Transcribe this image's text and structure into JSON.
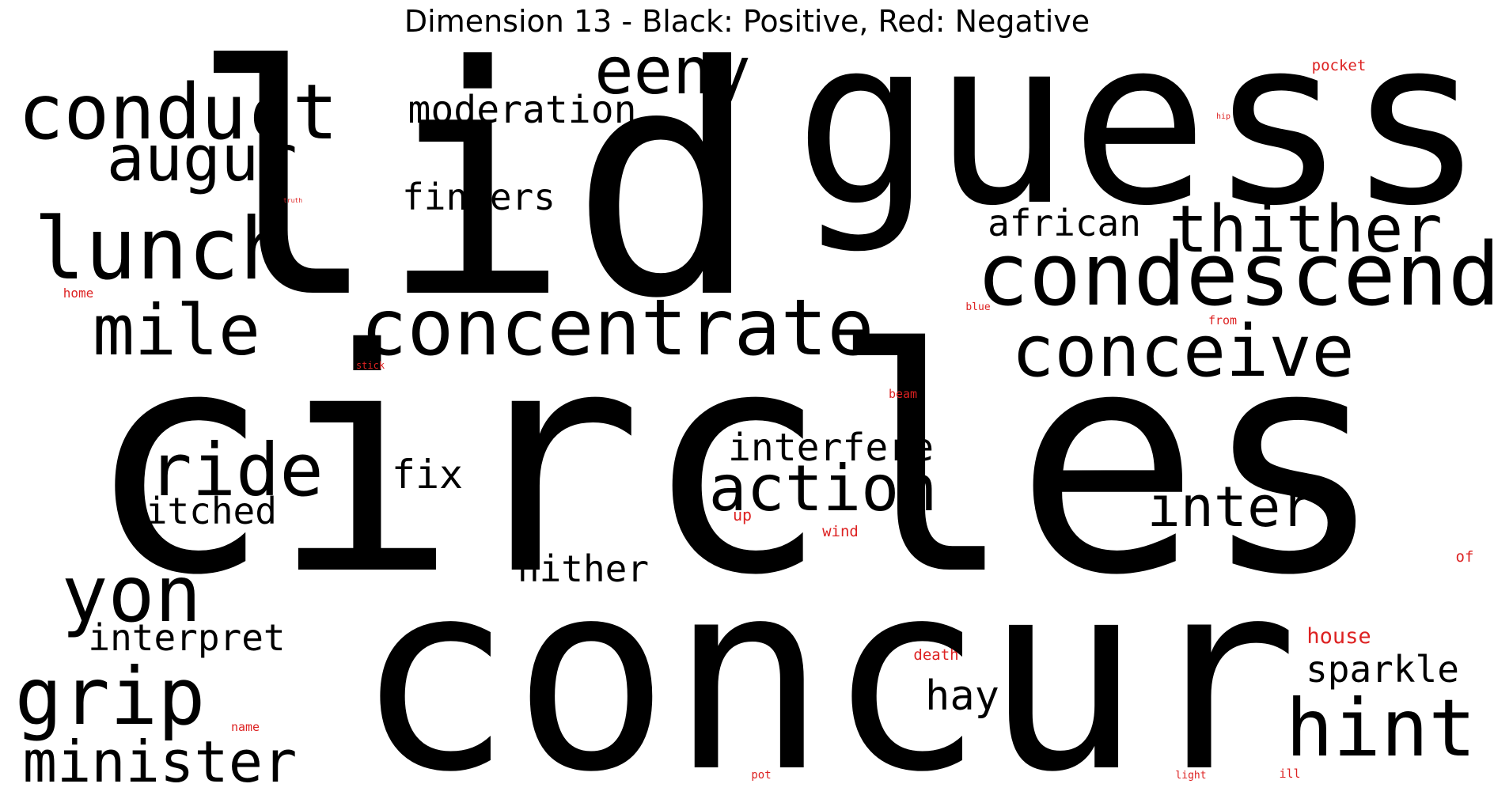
{
  "title": "Dimension 13 - Black: Positive, Red: Negative",
  "colors": {
    "positive": "#000000",
    "negative": "#dd2222"
  },
  "words": [
    {
      "text": "lid",
      "polarity": "positive"
    },
    {
      "text": "guess",
      "polarity": "positive"
    },
    {
      "text": "eeny",
      "polarity": "positive"
    },
    {
      "text": "conduct",
      "polarity": "positive"
    },
    {
      "text": "moderation",
      "polarity": "positive"
    },
    {
      "text": "augur",
      "polarity": "positive"
    },
    {
      "text": "fingers",
      "polarity": "positive"
    },
    {
      "text": "lunch",
      "polarity": "positive"
    },
    {
      "text": "african",
      "polarity": "positive"
    },
    {
      "text": "thither",
      "polarity": "positive"
    },
    {
      "text": "condescend",
      "polarity": "positive"
    },
    {
      "text": "mile",
      "polarity": "positive"
    },
    {
      "text": "concentrate",
      "polarity": "positive"
    },
    {
      "text": "conceive",
      "polarity": "positive"
    },
    {
      "text": "circles",
      "polarity": "positive"
    },
    {
      "text": "interfere",
      "polarity": "positive"
    },
    {
      "text": "ride",
      "polarity": "positive"
    },
    {
      "text": "fix",
      "polarity": "positive"
    },
    {
      "text": "action",
      "polarity": "positive"
    },
    {
      "text": "inter",
      "polarity": "positive"
    },
    {
      "text": "hitched",
      "polarity": "positive"
    },
    {
      "text": "hither",
      "polarity": "positive"
    },
    {
      "text": "yon",
      "polarity": "positive"
    },
    {
      "text": "interpret",
      "polarity": "positive"
    },
    {
      "text": "concur",
      "polarity": "positive"
    },
    {
      "text": "sparkle",
      "polarity": "positive"
    },
    {
      "text": "hay",
      "polarity": "positive"
    },
    {
      "text": "grip",
      "polarity": "positive"
    },
    {
      "text": "hint",
      "polarity": "positive"
    },
    {
      "text": "minister",
      "polarity": "positive"
    },
    {
      "text": "pocket",
      "polarity": "negative"
    },
    {
      "text": "hip",
      "polarity": "negative"
    },
    {
      "text": "truth",
      "polarity": "negative"
    },
    {
      "text": "home",
      "polarity": "negative"
    },
    {
      "text": "blue",
      "polarity": "negative"
    },
    {
      "text": "from",
      "polarity": "negative"
    },
    {
      "text": "stick",
      "polarity": "negative"
    },
    {
      "text": "beam",
      "polarity": "negative"
    },
    {
      "text": "up",
      "polarity": "negative"
    },
    {
      "text": "wind",
      "polarity": "negative"
    },
    {
      "text": "of",
      "polarity": "negative"
    },
    {
      "text": "house",
      "polarity": "negative"
    },
    {
      "text": "death",
      "polarity": "negative"
    },
    {
      "text": "name",
      "polarity": "negative"
    },
    {
      "text": "pot",
      "polarity": "negative"
    },
    {
      "text": "light",
      "polarity": "negative"
    },
    {
      "text": "ill",
      "polarity": "negative"
    }
  ]
}
